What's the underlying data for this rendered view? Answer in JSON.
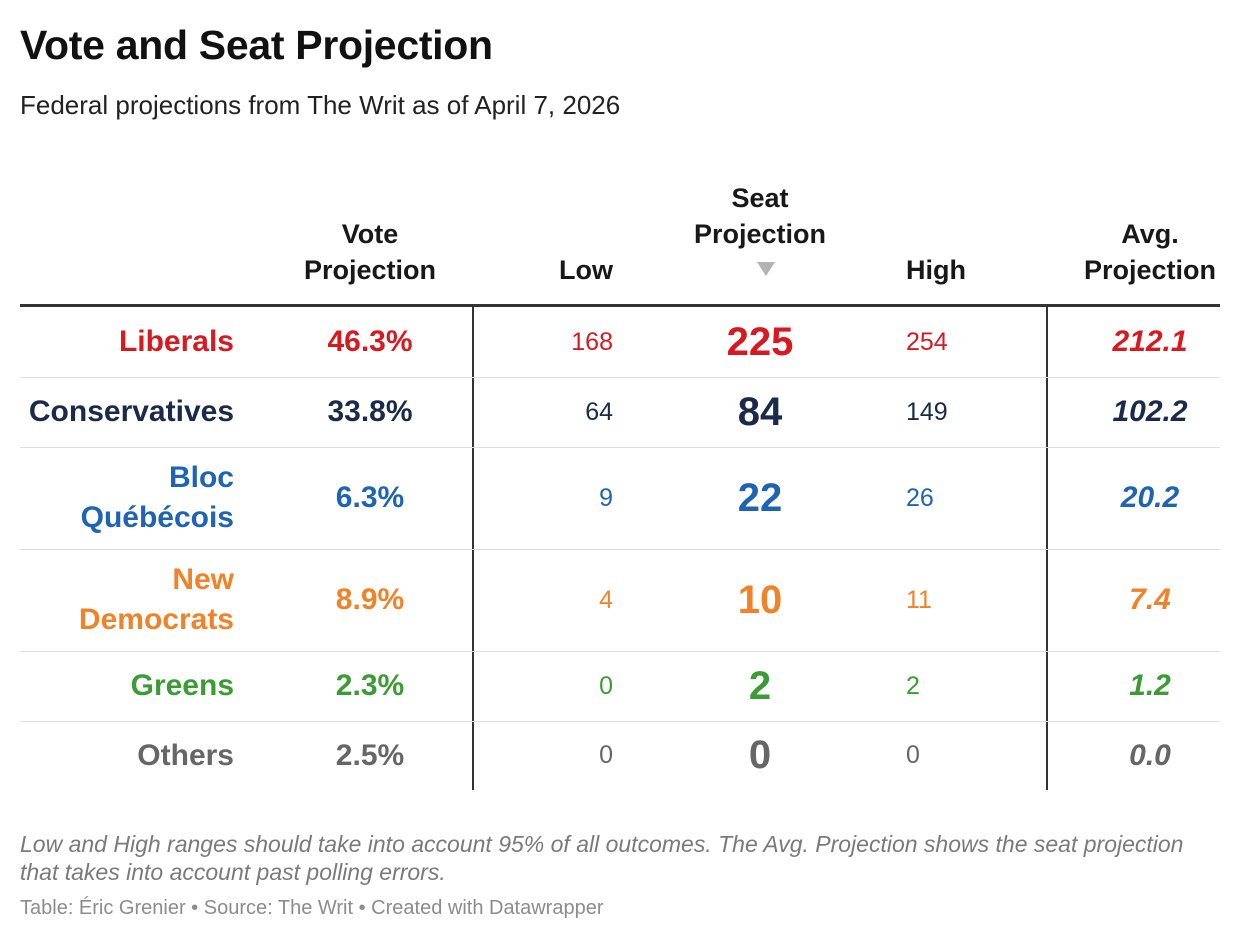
{
  "chart_data": {
    "type": "table",
    "title": "Vote and Seat Projection",
    "subtitle": "Federal projections from The Writ as of April 7, 2026",
    "columns": {
      "vote": [
        "Vote",
        "Projection"
      ],
      "low": "Low",
      "seat": [
        "Seat",
        "Projection"
      ],
      "high": "High",
      "avg": [
        "Avg.",
        "Projection"
      ]
    },
    "sorted_by": "Seat Projection",
    "rows": [
      {
        "party": [
          "Liberals"
        ],
        "vote": "46.3%",
        "low": "168",
        "seat": "225",
        "high": "254",
        "avg": "212.1",
        "color": "#d71920"
      },
      {
        "party": [
          "Conservatives"
        ],
        "vote": "33.8%",
        "low": "64",
        "seat": "84",
        "high": "149",
        "avg": "102.2",
        "color": "#1a2a4a"
      },
      {
        "party": [
          "Bloc",
          "Québécois"
        ],
        "vote": "6.3%",
        "low": "9",
        "seat": "22",
        "high": "26",
        "avg": "20.2",
        "color": "#1f64b3"
      },
      {
        "party": [
          "New",
          "Democrats"
        ],
        "vote": "8.9%",
        "low": "4",
        "seat": "10",
        "high": "11",
        "avg": "7.4",
        "color": "#f0832a"
      },
      {
        "party": [
          "Greens"
        ],
        "vote": "2.3%",
        "low": "0",
        "seat": "2",
        "high": "2",
        "avg": "1.2",
        "color": "#3d9b35"
      },
      {
        "party": [
          "Others"
        ],
        "vote": "2.5%",
        "low": "0",
        "seat": "0",
        "high": "0",
        "avg": "0.0",
        "color": "#666666"
      }
    ]
  },
  "footer": {
    "note": "Low and High ranges should take into account 95% of all outcomes. The Avg. Projection shows the seat projection that takes into account past polling errors.",
    "credits": "Table: Éric Grenier • Source: The Writ • Created with Datawrapper"
  }
}
